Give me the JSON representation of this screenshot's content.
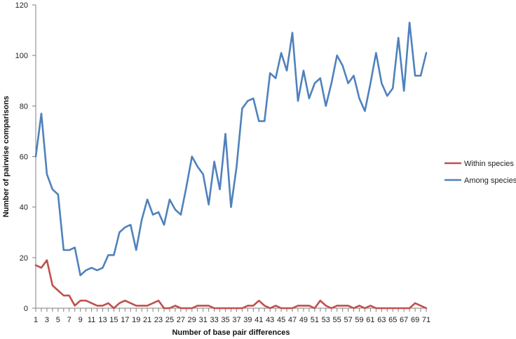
{
  "chart_data": {
    "type": "line",
    "title": "",
    "xlabel": "Number of base pair differences",
    "ylabel": "Number of pairwise comparisons",
    "x": [
      1,
      2,
      3,
      4,
      5,
      6,
      7,
      8,
      9,
      10,
      11,
      12,
      13,
      14,
      15,
      16,
      17,
      18,
      19,
      20,
      21,
      22,
      23,
      24,
      25,
      26,
      27,
      28,
      29,
      30,
      31,
      32,
      33,
      34,
      35,
      36,
      37,
      38,
      39,
      40,
      41,
      42,
      43,
      44,
      45,
      46,
      47,
      48,
      49,
      50,
      51,
      52,
      53,
      54,
      55,
      56,
      57,
      58,
      59,
      60,
      61,
      62,
      63,
      64,
      65,
      66,
      67,
      68,
      69,
      70,
      71
    ],
    "x_tick_labels": [
      "1",
      "3",
      "5",
      "7",
      "9",
      "11",
      "13",
      "15",
      "17",
      "19",
      "21",
      "23",
      "25",
      "27",
      "29",
      "31",
      "33",
      "35",
      "37",
      "39",
      "41",
      "43",
      "45",
      "47",
      "49",
      "51",
      "53",
      "55",
      "57",
      "59",
      "61",
      "63",
      "65",
      "67",
      "69",
      "71"
    ],
    "y_tick_labels": [
      "0",
      "20",
      "40",
      "60",
      "80",
      "100",
      "120"
    ],
    "ylim": [
      0,
      120
    ],
    "grid": false,
    "legend_position": "right",
    "series": [
      {
        "name": "Within species",
        "color": "#c0504d",
        "values": [
          17,
          16,
          19,
          9,
          7,
          5,
          5,
          1,
          3,
          3,
          2,
          1,
          1,
          2,
          0,
          2,
          3,
          2,
          1,
          1,
          1,
          2,
          3,
          0,
          0,
          1,
          0,
          0,
          0,
          1,
          1,
          1,
          0,
          0,
          0,
          0,
          0,
          0,
          1,
          1,
          3,
          1,
          0,
          1,
          0,
          0,
          0,
          1,
          1,
          1,
          0,
          3,
          1,
          0,
          1,
          1,
          1,
          0,
          1,
          0,
          1,
          0,
          0,
          0,
          0,
          0,
          0,
          0,
          2,
          1,
          0
        ]
      },
      {
        "name": "Among species",
        "color": "#4f81bd",
        "values": [
          60,
          77,
          53,
          47,
          45,
          23,
          23,
          24,
          13,
          15,
          16,
          15,
          16,
          21,
          21,
          30,
          32,
          33,
          23,
          35,
          43,
          37,
          38,
          33,
          43,
          39,
          37,
          48,
          60,
          56,
          53,
          41,
          58,
          47,
          69,
          40,
          56,
          79,
          82,
          83,
          74,
          74,
          93,
          91,
          101,
          94,
          109,
          82,
          94,
          83,
          89,
          91,
          80,
          89,
          100,
          96,
          89,
          92,
          83,
          78,
          89,
          101,
          89,
          84,
          87,
          107,
          86,
          113,
          92,
          92,
          101
        ]
      }
    ]
  }
}
